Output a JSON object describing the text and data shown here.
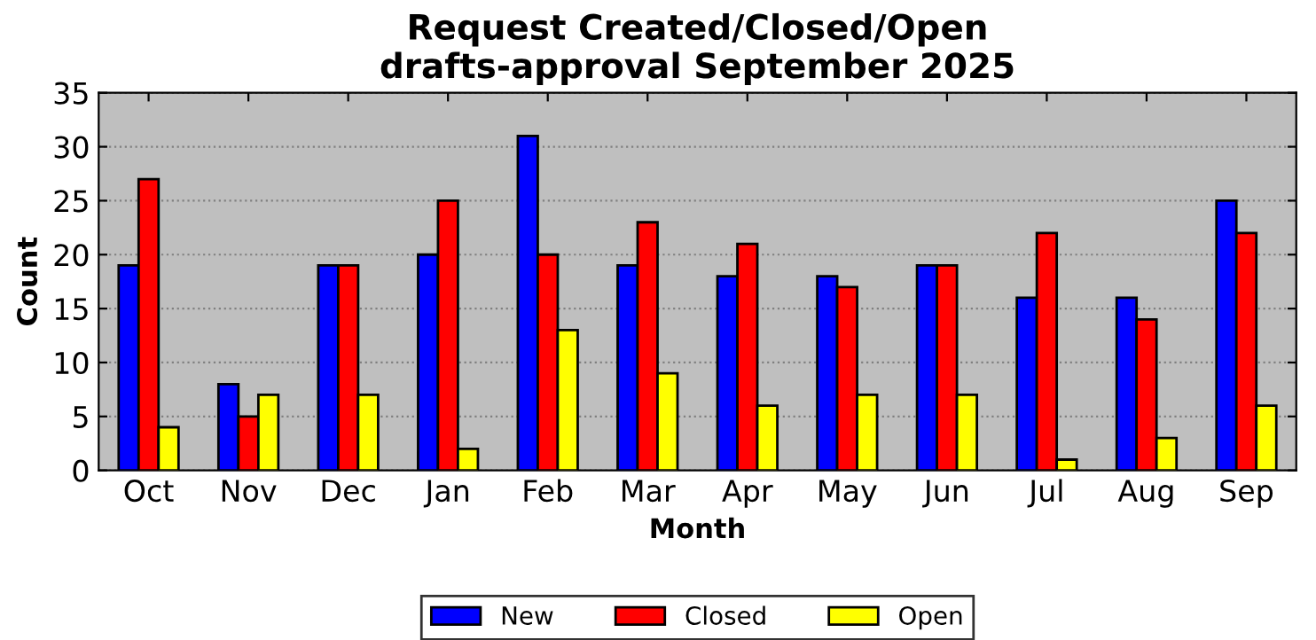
{
  "chart_data": {
    "type": "bar",
    "title": "Request Created/Closed/Open\ndrafts-approval September 2025",
    "xlabel": "Month",
    "ylabel": "Count",
    "categories": [
      "Oct",
      "Nov",
      "Dec",
      "Jan",
      "Feb",
      "Mar",
      "Apr",
      "May",
      "Jun",
      "Jul",
      "Aug",
      "Sep"
    ],
    "series": [
      {
        "name": "New",
        "color": "#0000ff",
        "values": [
          19,
          8,
          19,
          20,
          31,
          19,
          18,
          18,
          19,
          16,
          16,
          25
        ]
      },
      {
        "name": "Closed",
        "color": "#ff0000",
        "values": [
          27,
          5,
          19,
          25,
          20,
          23,
          21,
          17,
          19,
          22,
          14,
          22
        ]
      },
      {
        "name": "Open",
        "color": "#ffff00",
        "values": [
          4,
          7,
          7,
          2,
          13,
          9,
          6,
          7,
          7,
          1,
          3,
          6
        ]
      }
    ],
    "ylim": [
      0,
      35
    ],
    "yticks": [
      0,
      5,
      10,
      15,
      20,
      25,
      30,
      35
    ],
    "grid": "y",
    "legend": "bottom"
  }
}
